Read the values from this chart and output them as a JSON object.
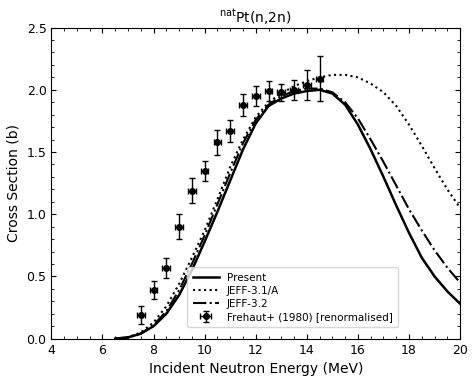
{
  "title_main": "Pt(n,2n)",
  "title_super": "nat",
  "xlabel": "Incident Neutron Energy (MeV)",
  "ylabel": "Cross Section (b)",
  "xlim": [
    4,
    20
  ],
  "ylim": [
    0.0,
    2.5
  ],
  "xticks": [
    4,
    6,
    8,
    10,
    12,
    14,
    16,
    18,
    20
  ],
  "yticks": [
    0.0,
    0.5,
    1.0,
    1.5,
    2.0,
    2.5
  ],
  "present_x": [
    6.5,
    7.0,
    7.5,
    8.0,
    8.5,
    9.0,
    9.5,
    10.0,
    10.5,
    11.0,
    11.5,
    12.0,
    12.5,
    13.0,
    13.5,
    14.0,
    14.5,
    15.0,
    15.5,
    16.0,
    16.5,
    17.0,
    17.5,
    18.0,
    18.5,
    19.0,
    19.5,
    20.0
  ],
  "present_y": [
    0.0,
    0.01,
    0.04,
    0.1,
    0.2,
    0.35,
    0.55,
    0.78,
    1.02,
    1.27,
    1.52,
    1.73,
    1.87,
    1.93,
    1.97,
    1.99,
    2.0,
    1.97,
    1.88,
    1.72,
    1.52,
    1.3,
    1.07,
    0.85,
    0.65,
    0.5,
    0.38,
    0.28
  ],
  "jeff31_x": [
    6.5,
    7.0,
    7.5,
    8.0,
    8.5,
    9.0,
    9.5,
    10.0,
    10.5,
    11.0,
    11.5,
    12.0,
    12.5,
    13.0,
    13.5,
    14.0,
    14.5,
    15.0,
    15.5,
    16.0,
    16.5,
    17.0,
    17.5,
    18.0,
    18.5,
    19.0,
    19.5,
    20.0
  ],
  "jeff31_y": [
    0.0,
    0.01,
    0.05,
    0.13,
    0.26,
    0.44,
    0.65,
    0.87,
    1.12,
    1.38,
    1.6,
    1.78,
    1.9,
    1.97,
    2.03,
    2.07,
    2.1,
    2.12,
    2.12,
    2.1,
    2.05,
    1.98,
    1.87,
    1.72,
    1.55,
    1.37,
    1.2,
    1.05
  ],
  "jeff32_x": [
    6.5,
    7.0,
    7.5,
    8.0,
    8.5,
    9.0,
    9.5,
    10.0,
    10.5,
    11.0,
    11.5,
    12.0,
    12.5,
    13.0,
    13.5,
    14.0,
    14.5,
    15.0,
    15.5,
    16.0,
    16.5,
    17.0,
    17.5,
    18.0,
    18.5,
    19.0,
    19.5,
    20.0
  ],
  "jeff32_y": [
    0.0,
    0.01,
    0.04,
    0.11,
    0.22,
    0.39,
    0.6,
    0.83,
    1.08,
    1.33,
    1.57,
    1.76,
    1.88,
    1.95,
    1.99,
    2.01,
    2.01,
    1.98,
    1.9,
    1.77,
    1.6,
    1.42,
    1.23,
    1.04,
    0.87,
    0.71,
    0.57,
    0.45
  ],
  "data_x": [
    7.5,
    8.0,
    8.5,
    9.0,
    9.5,
    10.0,
    10.5,
    11.0,
    11.5,
    12.0,
    12.5,
    13.0,
    13.5,
    14.0,
    14.5
  ],
  "data_y": [
    0.19,
    0.39,
    0.57,
    0.9,
    1.19,
    1.35,
    1.58,
    1.67,
    1.88,
    1.95,
    1.99,
    1.98,
    2.0,
    2.04,
    2.09
  ],
  "data_yerr": [
    0.07,
    0.07,
    0.08,
    0.1,
    0.1,
    0.08,
    0.1,
    0.09,
    0.09,
    0.08,
    0.08,
    0.07,
    0.08,
    0.12,
    0.18
  ],
  "data_xerr": 0.15,
  "color_present": "#000000",
  "color_jeff31": "#000000",
  "color_jeff32": "#000000",
  "color_data": "#000000",
  "legend_labels": [
    "Present",
    "JEFF-3.1/A",
    "JEFF-3.2",
    "Frehaut+ (1980) [renormalised]"
  ]
}
